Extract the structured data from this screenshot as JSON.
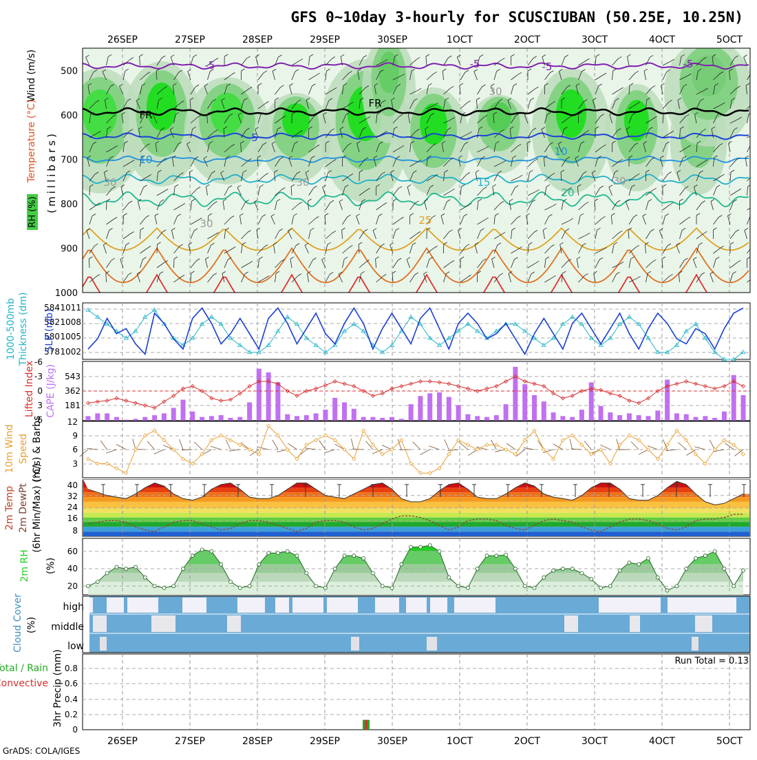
{
  "header": {
    "title": "GFS 0~10day 3-hourly for SCUSCIUBAN (50.25E, 10.25N)"
  },
  "footer": {
    "credit": "GrADS: COLA/IGES"
  },
  "dates": [
    "26SEP",
    "27SEP",
    "28SEP",
    "29SEP",
    "30SEP",
    "1OCT",
    "2OCT",
    "3OCT",
    "4OCT",
    "5OCT"
  ],
  "panels": {
    "upper": {
      "ylabel_rh": "RH (%)",
      "ylabel_temp": "Temperature (°C)",
      "ylabel_wind": "Wind (m/s)",
      "ylabel_units": "(millibars)",
      "levels": [
        "500",
        "600",
        "700",
        "800",
        "900",
        "1000"
      ],
      "contour_labels": [
        "-5",
        "-5",
        "FR",
        "FR",
        "-5",
        "-5",
        "5",
        "10",
        "10",
        "15",
        "20",
        "25",
        "30",
        "30",
        "30",
        "30",
        "30"
      ]
    },
    "slp": {
      "ylabel_left": "1000-500mb",
      "ylabel_left2": "Thickness (dm)",
      "ylabel_right": "SLP (mb)",
      "left_ticks": [
        "584",
        "582",
        "580",
        "578"
      ],
      "right_ticks": [
        "1011",
        "1008",
        "1005",
        "1002"
      ]
    },
    "cape": {
      "ylabel_left": "Lifted Index",
      "ylabel_right": "CAPE (J/kg)",
      "left_ticks": [
        "-6",
        "-3",
        "0",
        "3",
        "6"
      ],
      "right_ticks": [
        "543",
        "362",
        "181"
      ]
    },
    "wind10": {
      "ylabel_a": "10m Wind",
      "ylabel_b": "Speed",
      "ylabel_c": "(m/s) & Barbs",
      "ticks": [
        "12",
        "9",
        "6",
        "3"
      ]
    },
    "temp2m": {
      "ylabel_a": "2m Temp",
      "ylabel_b": "2m DewPt",
      "ylabel_c": "(6hr Min/Max) (°C)",
      "ticks": [
        "40",
        "32",
        "24",
        "16",
        "8"
      ]
    },
    "rh2m": {
      "ylabel": "2m RH",
      "units": "(%)",
      "ticks": [
        "60",
        "40",
        "20"
      ]
    },
    "cloud": {
      "ylabel": "Cloud Cover",
      "units": "(%)",
      "rows": [
        "high",
        "middle",
        "low"
      ]
    },
    "precip": {
      "ylabel_a": "Total / Rain",
      "ylabel_b": "Convective",
      "ylabel_c": "3hr Precip (mm)",
      "run_total": "Run Total = 0.13",
      "ticks": [
        "0.8",
        "0.6",
        "0.4",
        "0.2",
        "0"
      ]
    }
  },
  "colors": {
    "rh": "#2ecc40",
    "slp": "#1a3fd1",
    "thickness": "#22b5c8",
    "li": "#d83030",
    "cape": "#c070f0",
    "wind": "#e8a030",
    "cloud": "#6aaad6",
    "rh2m": "#22cc22"
  },
  "chart_data": [
    {
      "type": "area",
      "name": "vertical cross-section",
      "y_unit": "millibars",
      "ylim": [
        1000,
        450
      ],
      "x": [
        "26SEP",
        "27SEP",
        "28SEP",
        "29SEP",
        "30SEP",
        "1OCT",
        "2OCT",
        "3OCT",
        "4OCT",
        "5OCT"
      ],
      "isotherms": [
        -5,
        0,
        5,
        10,
        15,
        20,
        25,
        30
      ],
      "isotherm_levels_mb": {
        "-5": 490,
        "0": 595,
        "5": 650,
        "10": 700,
        "15": 745,
        "20": 790,
        "25": 855,
        "30": 900
      }
    },
    {
      "type": "line",
      "series": [
        {
          "name": "SLP",
          "values": [
            1003,
            1005,
            1009,
            1006,
            1007,
            1004,
            1002,
            1010,
            1008,
            1005,
            1003,
            1009,
            1011,
            1008,
            1004,
            1006,
            1009,
            1006,
            1003,
            1009,
            1011,
            1008,
            1004,
            1007,
            1010,
            1006,
            1004,
            1008,
            1011,
            1008,
            1003,
            1007,
            1010,
            1007,
            1004,
            1009,
            1011,
            1007,
            1003,
            1008,
            1010,
            1008,
            1005,
            1006,
            1008,
            1005,
            1002,
            1006,
            1009,
            1006,
            1003,
            1008,
            1010,
            1007,
            1004,
            1007,
            1010,
            1006,
            1003,
            1007,
            1010,
            1008,
            1005,
            1004,
            1007,
            1006,
            1003,
            1007,
            1010,
            1011
          ]
        },
        {
          "name": "1000-500mb Thickness",
          "values": [
            584,
            583,
            582,
            581,
            580,
            581,
            583,
            584,
            582,
            580,
            579,
            580,
            582,
            583,
            582,
            580,
            579,
            578,
            578,
            579,
            581,
            583,
            582,
            580,
            579,
            578,
            579,
            581,
            582,
            581,
            579,
            578,
            579,
            581,
            583,
            582,
            580,
            579,
            580,
            581,
            582,
            581,
            580,
            581,
            582,
            582,
            581,
            580,
            579,
            580,
            582,
            583,
            582,
            580,
            579,
            580,
            582,
            583,
            582,
            580,
            578,
            578,
            579,
            581,
            582,
            580,
            578,
            577,
            577,
            578
          ]
        }
      ],
      "ylim_left": [
        577,
        585
      ],
      "ylim_right": [
        1001,
        1012
      ]
    },
    {
      "type": "bar",
      "series": [
        {
          "name": "CAPE",
          "values": [
            50,
            80,
            80,
            40,
            10,
            20,
            40,
            60,
            80,
            140,
            230,
            100,
            40,
            50,
            60,
            30,
            40,
            200,
            570,
            530,
            420,
            70,
            50,
            60,
            80,
            120,
            250,
            200,
            130,
            40,
            40,
            30,
            40,
            20,
            180,
            270,
            300,
            310,
            260,
            170,
            70,
            50,
            40,
            60,
            180,
            590,
            400,
            280,
            210,
            90,
            50,
            40,
            120,
            420,
            160,
            90,
            60,
            80,
            60,
            50,
            110,
            450,
            80,
            70,
            40,
            50,
            30,
            100,
            500,
            280
          ]
        },
        {
          "name": "Lifted Index",
          "values": [
            2.5,
            2.2,
            2,
            1.5,
            2,
            2.5,
            3,
            3.5,
            2.2,
            1,
            -0.5,
            -1,
            0,
            1.5,
            2,
            1.8,
            0.5,
            -1,
            -2,
            -2,
            -1.5,
            0,
            1,
            0,
            -0.5,
            -1.2,
            -2,
            -1.5,
            -1,
            0,
            1,
            0.5,
            -0.5,
            -1,
            -1.5,
            -2,
            -2,
            -1.8,
            -1.5,
            -1,
            -0.5,
            0,
            -0.5,
            -1,
            -2,
            -3,
            -2,
            -1.5,
            -1,
            0.5,
            1.5,
            1,
            0,
            -0.5,
            -0.2,
            0.5,
            1,
            2,
            2.5,
            1.5,
            0,
            -1,
            -1.5,
            -2,
            -1.5,
            -1,
            -0.5,
            -1,
            -2,
            -1
          ]
        }
      ],
      "ylim_left": [
        6,
        -6
      ],
      "ylim_right": [
        0,
        650
      ]
    },
    {
      "type": "line",
      "series": [
        {
          "name": "10m Wind Speed",
          "values": [
            4,
            3,
            3,
            2,
            1,
            6,
            9,
            10,
            8,
            6,
            4,
            3,
            5,
            8,
            9,
            8,
            7,
            6,
            5,
            11,
            9,
            6,
            4,
            7,
            8,
            9,
            8,
            6,
            4,
            10,
            7,
            5,
            6,
            8,
            3,
            1,
            1,
            2,
            5,
            8,
            7,
            6,
            7,
            7,
            6,
            5,
            8,
            10,
            6,
            4,
            8,
            9,
            7,
            5,
            6,
            3,
            7,
            9,
            8,
            6,
            4,
            7,
            10,
            8,
            5,
            3,
            6,
            8,
            7,
            5
          ]
        }
      ],
      "ylim": [
        0,
        12
      ]
    },
    {
      "type": "area",
      "series": [
        {
          "name": "2m Temp",
          "values": [
            36,
            34,
            32,
            31,
            30,
            33,
            37,
            40,
            38,
            33,
            30,
            29,
            31,
            36,
            39,
            40,
            36,
            31,
            30,
            30,
            32,
            36,
            40,
            40,
            36,
            32,
            31,
            30,
            33,
            36,
            39,
            40,
            36,
            30,
            28,
            28,
            30,
            35,
            39,
            40,
            36,
            31,
            30,
            30,
            33,
            37,
            40,
            38,
            33,
            31,
            30,
            29,
            32,
            37,
            40,
            40,
            36,
            30,
            29,
            29,
            32,
            37,
            41,
            39,
            33,
            28,
            26,
            27,
            30,
            33
          ]
        },
        {
          "name": "2m DewPt",
          "values": [
            14,
            15,
            16,
            16,
            15,
            12,
            10,
            9,
            12,
            15,
            16,
            16,
            14,
            12,
            10,
            11,
            14,
            16,
            16,
            15,
            13,
            11,
            9,
            11,
            15,
            16,
            16,
            15,
            12,
            10,
            11,
            14,
            17,
            19,
            19,
            18,
            16,
            13,
            10,
            12,
            16,
            17,
            17,
            16,
            13,
            11,
            10,
            13,
            16,
            17,
            16,
            15,
            12,
            10,
            9,
            12,
            15,
            17,
            17,
            16,
            14,
            11,
            10,
            12,
            16,
            17,
            17,
            18,
            20,
            20
          ]
        }
      ],
      "ylim": [
        6,
        42
      ]
    },
    {
      "type": "area",
      "series": [
        {
          "name": "2m RH",
          "values": [
            20,
            25,
            35,
            42,
            40,
            42,
            30,
            20,
            18,
            20,
            40,
            55,
            62,
            60,
            45,
            25,
            18,
            20,
            45,
            58,
            58,
            60,
            55,
            35,
            20,
            18,
            40,
            55,
            55,
            52,
            35,
            20,
            18,
            45,
            65,
            65,
            67,
            60,
            30,
            20,
            18,
            40,
            55,
            55,
            56,
            40,
            20,
            18,
            30,
            38,
            40,
            40,
            35,
            28,
            18,
            20,
            38,
            47,
            45,
            52,
            30,
            15,
            20,
            40,
            52,
            55,
            60,
            40,
            20,
            38
          ]
        }
      ],
      "ylim": [
        10,
        75
      ]
    },
    {
      "type": "heatmap",
      "name": "Cloud Cover",
      "rows": [
        "high",
        "middle",
        "low"
      ],
      "ylim": [
        0,
        100
      ]
    },
    {
      "type": "bar",
      "series": [
        {
          "name": "Total / Rain",
          "values": [
            0,
            0,
            0,
            0,
            0,
            0,
            0,
            0,
            0,
            0,
            0,
            0,
            0,
            0,
            0,
            0,
            0,
            0,
            0,
            0,
            0,
            0,
            0,
            0,
            0,
            0,
            0,
            0,
            0,
            0,
            0,
            0,
            0.13,
            0,
            0,
            0,
            0,
            0,
            0,
            0,
            0,
            0,
            0,
            0,
            0,
            0,
            0,
            0,
            0,
            0,
            0,
            0,
            0,
            0,
            0,
            0,
            0,
            0,
            0,
            0,
            0,
            0,
            0,
            0,
            0,
            0,
            0,
            0,
            0,
            0
          ]
        },
        {
          "name": "Convective",
          "values": [
            0,
            0,
            0,
            0,
            0,
            0,
            0,
            0,
            0,
            0,
            0,
            0,
            0,
            0,
            0,
            0,
            0,
            0,
            0,
            0,
            0,
            0,
            0,
            0,
            0,
            0,
            0,
            0,
            0,
            0,
            0,
            0,
            0.13,
            0,
            0,
            0,
            0,
            0,
            0,
            0,
            0,
            0,
            0,
            0,
            0,
            0,
            0,
            0,
            0,
            0,
            0,
            0,
            0,
            0,
            0,
            0,
            0,
            0,
            0,
            0,
            0,
            0,
            0,
            0,
            0,
            0,
            0,
            0,
            0,
            0
          ]
        }
      ],
      "ylim": [
        0,
        1
      ]
    }
  ]
}
